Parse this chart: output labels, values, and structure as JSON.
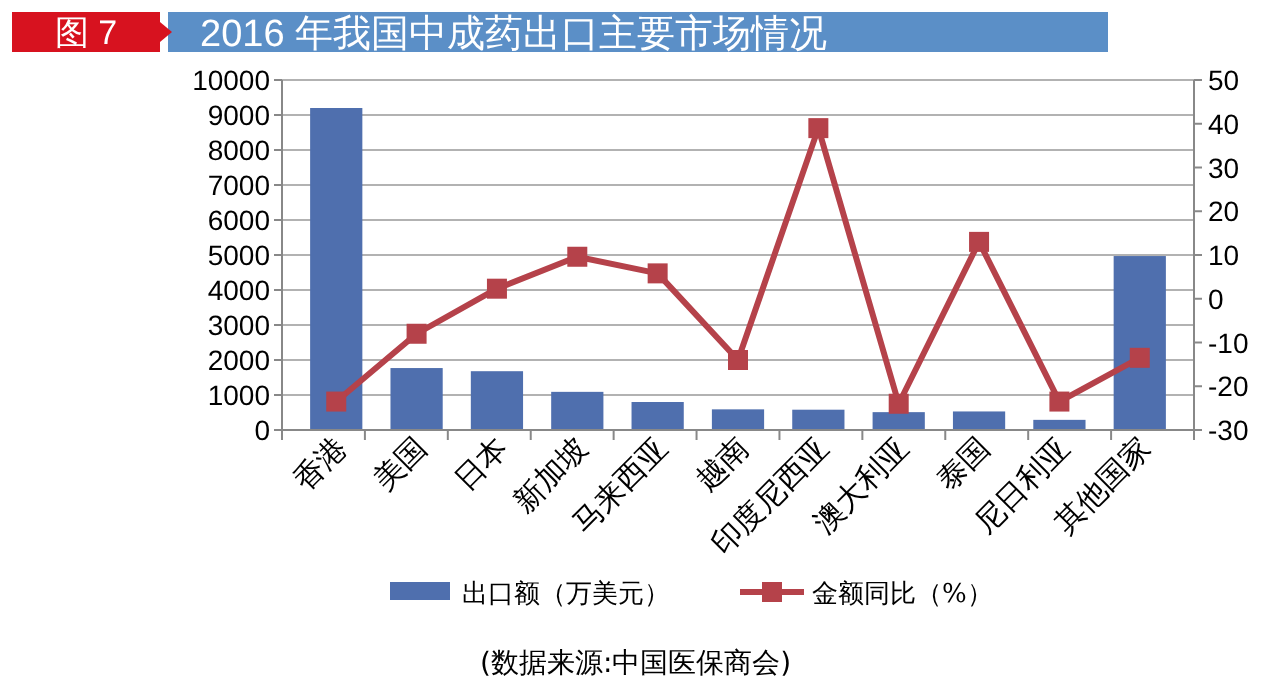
{
  "chart_data": {
    "type": "bar",
    "title": "2016 年我国中成药出口主要市场情况",
    "annotations": [
      "图 7",
      "(数据来源:中国医保商会)"
    ],
    "categories": [
      "香港",
      "美国",
      "日本",
      "新加坡",
      "马来西亚",
      "越南",
      "印度尼西亚",
      "澳大利亚",
      "泰国",
      "尼日利亚",
      "其他国家"
    ],
    "series": [
      {
        "name": "出口额（万美元）",
        "color": "#4f6fae",
        "values": [
          9200,
          1770,
          1680,
          1090,
          800,
          590,
          580,
          510,
          530,
          290,
          4970
        ]
      },
      {
        "name": "金额同比（%）",
        "type": "line",
        "axis": "y2",
        "color": "#b5424a",
        "values": [
          -23.5,
          -8,
          2.3,
          9.6,
          5.8,
          -14,
          39,
          -24,
          13,
          -23.5,
          -13.5
        ]
      }
    ],
    "ylim": [
      0,
      10000
    ],
    "yticks": [
      0,
      1000,
      2000,
      3000,
      4000,
      5000,
      6000,
      7000,
      8000,
      9000,
      10000
    ],
    "y2lim": [
      -30,
      50
    ],
    "y2ticks": [
      -30,
      -20,
      -10,
      0,
      10,
      20,
      30,
      40,
      50
    ],
    "grid": "y",
    "legend": "bottom",
    "marker": "square",
    "line_style": "solid"
  }
}
